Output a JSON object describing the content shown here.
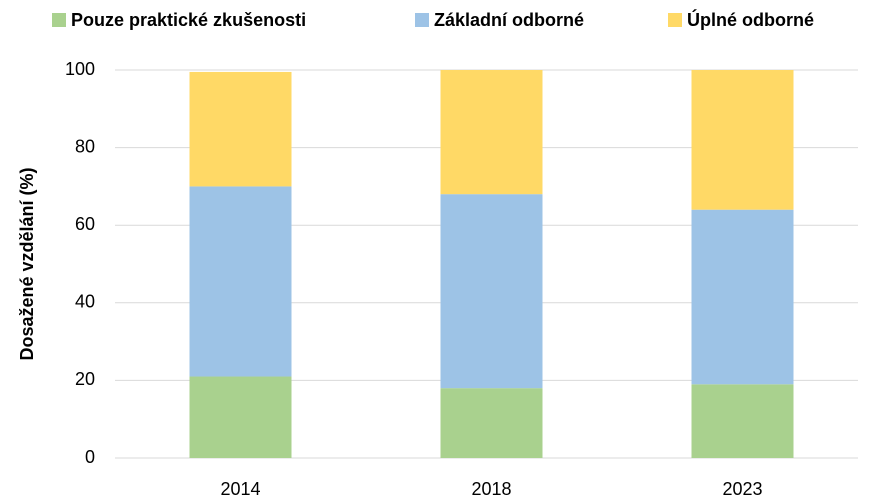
{
  "chart_data": {
    "type": "stacked_bar",
    "ylabel": "Dosažené vzdělání (%)",
    "categories": [
      "2014",
      "2018",
      "2023"
    ],
    "series": [
      {
        "name": "Pouze praktické zkušenosti",
        "color": "#a9d18e",
        "values": [
          21,
          18,
          19
        ]
      },
      {
        "name": "Základní odborné",
        "color": "#9dc3e6",
        "values": [
          49,
          50,
          45
        ]
      },
      {
        "name": "Úplné odborné",
        "color": "#ffd966",
        "values": [
          29.5,
          32,
          36
        ]
      }
    ],
    "ylim": [
      0,
      100
    ],
    "yticks": [
      0,
      20,
      40,
      60,
      80,
      100
    ],
    "grid": true,
    "legend": "top"
  }
}
